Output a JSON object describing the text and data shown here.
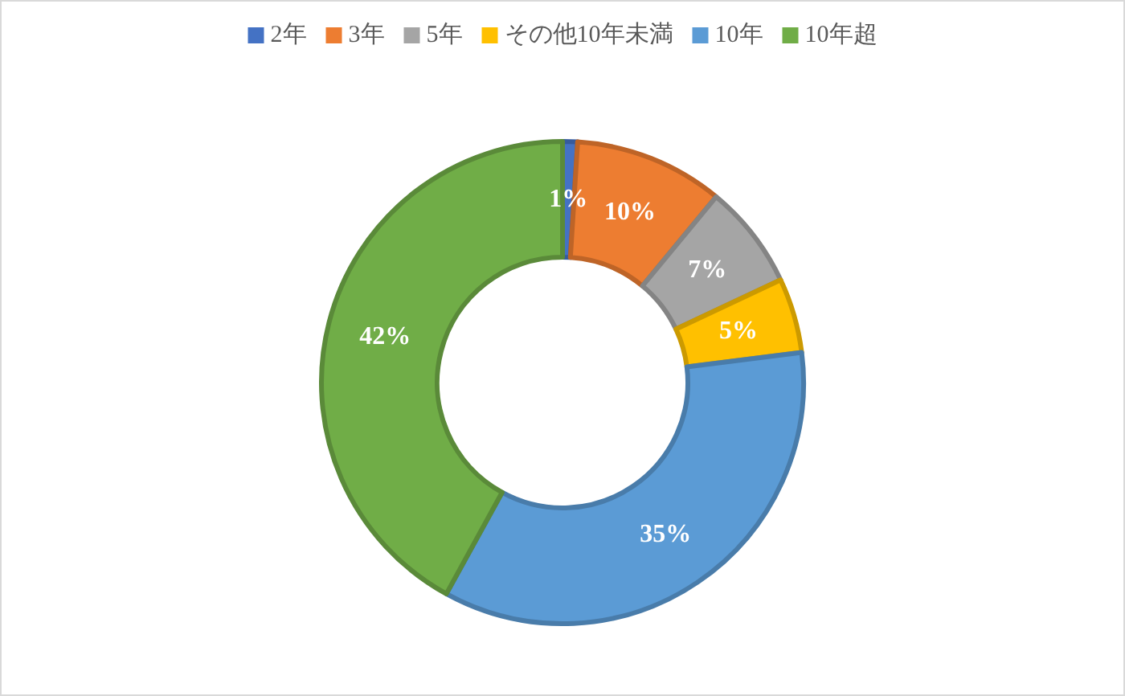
{
  "chart_data": {
    "type": "donut",
    "categories": [
      "2年",
      "3年",
      "5年",
      "その他10年未満",
      "10年",
      "10年超"
    ],
    "values": [
      1,
      10,
      7,
      5,
      35,
      42
    ],
    "colors": [
      "#4472c4",
      "#ed7d31",
      "#a5a5a5",
      "#ffc000",
      "#5b9bd5",
      "#70ad47"
    ],
    "value_labels": [
      "1%",
      "10%",
      "7%",
      "5%",
      "35%",
      "42%"
    ],
    "legend": "top"
  }
}
